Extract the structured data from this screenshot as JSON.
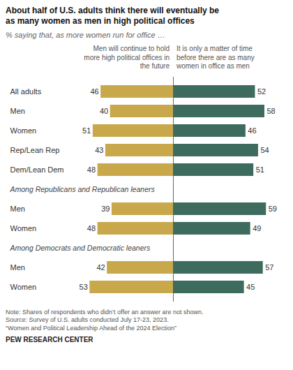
{
  "chart_data": {
    "type": "bar",
    "orientation": "horizontal",
    "title": "About half of U.S. adults think there will eventually be\nas many women as men in high political offices",
    "subtitle": "% saying that, as more women run for office …",
    "categories": [
      "All adults",
      "Men",
      "Women",
      "Rep/Lean Rep",
      "Dem/Lean Dem",
      "Among Republicans and Republican leaners",
      "Men",
      "Women",
      "Among Democrats and Democratic leaners",
      "Men",
      "Women"
    ],
    "series": [
      {
        "name": "Men will continue to hold\nmore high political offices in\nthe future",
        "color": "#C9A84C",
        "values": [
          46,
          40,
          51,
          43,
          48,
          null,
          39,
          48,
          null,
          42,
          53
        ]
      },
      {
        "name": "It is only a matter of time\nbefore there are as many\nwomen in office as men",
        "color": "#3D6B5E",
        "values": [
          52,
          58,
          46,
          54,
          51,
          null,
          59,
          49,
          null,
          57,
          45
        ]
      }
    ],
    "xlim": [
      0,
      62
    ],
    "data_labels": true,
    "tick_labels": "y",
    "legend": "top",
    "annotations": [
      "Note: Shares of respondents who didn’t offer an answer are not shown.\nSource: Survey of U.S. adults conducted July 17-23, 2023.\n“Women and Political Leadership Ahead of the 2024 Election”",
      "PEW RESEARCH CENTER"
    ]
  }
}
